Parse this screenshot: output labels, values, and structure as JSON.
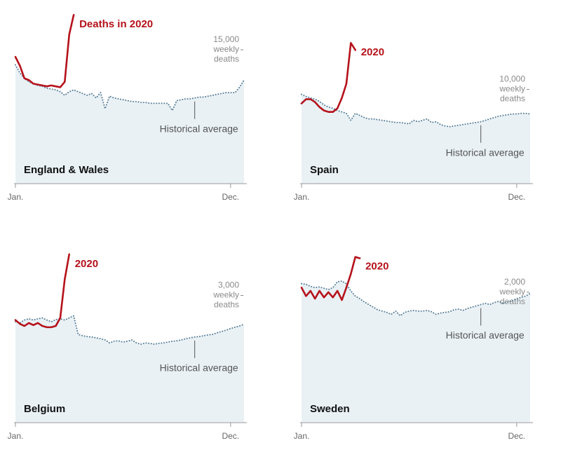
{
  "chart_data": [
    {
      "type": "line",
      "title": "England & Wales",
      "x": [
        1,
        2,
        3,
        4,
        5,
        6,
        7,
        8,
        9,
        10,
        11,
        12,
        13,
        14,
        15,
        16,
        17,
        18,
        19,
        20,
        21,
        22,
        23,
        24,
        25,
        26,
        27,
        28,
        29,
        30,
        31,
        32,
        33,
        34,
        35,
        36,
        37,
        38,
        39,
        40,
        41,
        42,
        43,
        44,
        45,
        46,
        47,
        48,
        49,
        50,
        51,
        52
      ],
      "xlim": [
        1,
        52
      ],
      "xticks": [
        {
          "value": 1,
          "label": "Jan."
        },
        {
          "value": 49,
          "label": "Dec."
        }
      ],
      "ylim": [
        0,
        19000
      ],
      "yticks": [
        {
          "value": 15000,
          "label": "15,000"
        }
      ],
      "ylabel": [
        "weekly",
        "deaths"
      ],
      "series": [
        {
          "name": "Historical average",
          "color": "#5b7f96",
          "values": [
            13300,
            12400,
            11800,
            11400,
            11200,
            11000,
            10900,
            10700,
            10600,
            10500,
            10300,
            9900,
            10300,
            10500,
            10300,
            10100,
            9900,
            10100,
            9600,
            10200,
            8400,
            9800,
            9600,
            9500,
            9400,
            9300,
            9200,
            9200,
            9100,
            9100,
            9000,
            9000,
            9000,
            9000,
            9000,
            8200,
            9300,
            9400,
            9500,
            9500,
            9600,
            9700,
            9700,
            9800,
            9900,
            10000,
            10100,
            10200,
            10200,
            10200,
            10800,
            11600
          ]
        },
        {
          "name": "Deaths in 2020",
          "color": "#b5121b",
          "values": [
            14200,
            13200,
            11800,
            11600,
            11200,
            11100,
            11000,
            10900,
            11000,
            10900,
            10800,
            11400,
            16700,
            18900,
            null,
            null,
            null,
            null,
            null,
            null,
            null,
            null,
            null,
            null,
            null,
            null,
            null,
            null,
            null,
            null,
            null,
            null,
            null,
            null,
            null,
            null,
            null,
            null,
            null,
            null,
            null,
            null,
            null,
            null,
            null,
            null,
            null,
            null,
            null,
            null,
            null,
            null
          ]
        }
      ]
    },
    {
      "type": "line",
      "title": "Spain",
      "x": [
        1,
        2,
        3,
        4,
        5,
        6,
        7,
        8,
        9,
        10,
        11,
        12,
        13,
        14,
        15,
        16,
        17,
        18,
        19,
        20,
        21,
        22,
        23,
        24,
        25,
        26,
        27,
        28,
        29,
        30,
        31,
        32,
        33,
        34,
        35,
        36,
        37,
        38,
        39,
        40,
        41,
        42,
        43,
        44,
        45,
        46,
        47,
        48,
        49,
        50,
        51,
        52
      ],
      "xlim": [
        1,
        52
      ],
      "xticks": [
        {
          "value": 1,
          "label": "Jan."
        },
        {
          "value": 49,
          "label": "Dec."
        }
      ],
      "ylim": [
        0,
        18000
      ],
      "yticks": [
        {
          "value": 10000,
          "label": "10,000"
        }
      ],
      "ylabel": [
        "weekly",
        "deaths"
      ],
      "series": [
        {
          "name": "Historical average",
          "color": "#5b7f96",
          "values": [
            9480,
            9250,
            9100,
            8960,
            8730,
            8360,
            8130,
            7990,
            7760,
            7610,
            7460,
            6720,
            7460,
            7240,
            7010,
            6870,
            6870,
            6790,
            6720,
            6640,
            6570,
            6490,
            6490,
            6420,
            6340,
            6720,
            6570,
            6720,
            6870,
            6490,
            6570,
            6270,
            6120,
            6040,
            6120,
            6190,
            6270,
            6340,
            6420,
            6490,
            6570,
            6720,
            6870,
            7010,
            7160,
            7240,
            7310,
            7390,
            7390,
            7460,
            7460,
            7390
          ]
        },
        {
          "name": "2020",
          "color": "#b5121b",
          "values": [
            8510,
            8960,
            8960,
            8660,
            8130,
            7760,
            7610,
            7610,
            7990,
            9100,
            10600,
            14930,
            14180,
            null,
            null,
            null,
            null,
            null,
            null,
            null,
            null,
            null,
            null,
            null,
            null,
            null,
            null,
            null,
            null,
            null,
            null,
            null,
            null,
            null,
            null,
            null,
            null,
            null,
            null,
            null,
            null,
            null,
            null,
            null,
            null,
            null,
            null,
            null,
            null,
            null,
            null,
            null
          ]
        }
      ]
    },
    {
      "type": "line",
      "title": "Belgium",
      "x": [
        1,
        2,
        3,
        4,
        5,
        6,
        7,
        8,
        9,
        10,
        11,
        12,
        13,
        14,
        15,
        16,
        17,
        18,
        19,
        20,
        21,
        22,
        23,
        24,
        25,
        26,
        27,
        28,
        29,
        30,
        31,
        32,
        33,
        34,
        35,
        36,
        37,
        38,
        39,
        40,
        41,
        42,
        43,
        44,
        45,
        46,
        47,
        48,
        49,
        50,
        51,
        52
      ],
      "xlim": [
        1,
        52
      ],
      "xticks": [
        {
          "value": 1,
          "label": "Jan."
        },
        {
          "value": 49,
          "label": "Dec."
        }
      ],
      "ylim": [
        0,
        4000
      ],
      "yticks": [
        {
          "value": 3000,
          "label": "3,000"
        }
      ],
      "ylabel": [
        "weekly",
        "deaths"
      ],
      "series": [
        {
          "name": "Historical average",
          "color": "#5b7f96",
          "values": [
            2380,
            2350,
            2420,
            2450,
            2420,
            2450,
            2470,
            2420,
            2380,
            2430,
            2450,
            2420,
            2470,
            2520,
            2080,
            2050,
            2030,
            2020,
            2000,
            1980,
            1950,
            1880,
            1920,
            1930,
            1900,
            1920,
            1950,
            1880,
            1850,
            1880,
            1870,
            1850,
            1870,
            1880,
            1900,
            1920,
            1930,
            1950,
            1980,
            2000,
            2020,
            2030,
            2050,
            2070,
            2080,
            2120,
            2150,
            2180,
            2220,
            2250,
            2280,
            2320
          ]
        },
        {
          "name": "2020",
          "color": "#b5121b",
          "values": [
            2420,
            2330,
            2280,
            2350,
            2300,
            2350,
            2280,
            2250,
            2250,
            2280,
            2470,
            3380,
            3970,
            null,
            null,
            null,
            null,
            null,
            null,
            null,
            null,
            null,
            null,
            null,
            null,
            null,
            null,
            null,
            null,
            null,
            null,
            null,
            null,
            null,
            null,
            null,
            null,
            null,
            null,
            null,
            null,
            null,
            null,
            null,
            null,
            null,
            null,
            null,
            null,
            null,
            null,
            null
          ]
        }
      ]
    },
    {
      "type": "line",
      "title": "Sweden",
      "x": [
        1,
        2,
        3,
        4,
        5,
        6,
        7,
        8,
        9,
        10,
        11,
        12,
        13,
        14,
        15,
        16,
        17,
        18,
        19,
        20,
        21,
        22,
        23,
        24,
        25,
        26,
        27,
        28,
        29,
        30,
        31,
        32,
        33,
        34,
        35,
        36,
        37,
        38,
        39,
        40,
        41,
        42,
        43,
        44,
        45,
        46,
        47,
        48,
        49,
        50,
        51,
        52
      ],
      "xlim": [
        1,
        52
      ],
      "xticks": [
        {
          "value": 1,
          "label": "Jan."
        },
        {
          "value": 49,
          "label": "Dec."
        }
      ],
      "ylim": [
        0,
        2600
      ],
      "yticks": [
        {
          "value": 2000,
          "label": "2,000"
        }
      ],
      "ylabel": [
        "weekly",
        "deaths"
      ],
      "series": [
        {
          "name": "Historical average",
          "color": "#5b7f96",
          "values": [
            2130,
            2120,
            2090,
            2070,
            2080,
            2060,
            2040,
            2070,
            2160,
            2170,
            2130,
            2020,
            1940,
            1900,
            1850,
            1810,
            1770,
            1730,
            1710,
            1690,
            1660,
            1710,
            1640,
            1690,
            1710,
            1720,
            1710,
            1710,
            1720,
            1700,
            1660,
            1680,
            1690,
            1700,
            1730,
            1740,
            1720,
            1750,
            1770,
            1790,
            1810,
            1830,
            1810,
            1840,
            1860,
            1830,
            1850,
            1870,
            1900,
            1920,
            1940,
            1980
          ]
        },
        {
          "name": "2020",
          "color": "#b5121b",
          "values": [
            2070,
            1940,
            2020,
            1900,
            2020,
            1920,
            2000,
            1920,
            2020,
            1880,
            2070,
            2280,
            2540,
            2520,
            null,
            null,
            null,
            null,
            null,
            null,
            null,
            null,
            null,
            null,
            null,
            null,
            null,
            null,
            null,
            null,
            null,
            null,
            null,
            null,
            null,
            null,
            null,
            null,
            null,
            null,
            null,
            null,
            null,
            null,
            null,
            null,
            null,
            null,
            null,
            null,
            null,
            null
          ]
        }
      ]
    }
  ]
}
